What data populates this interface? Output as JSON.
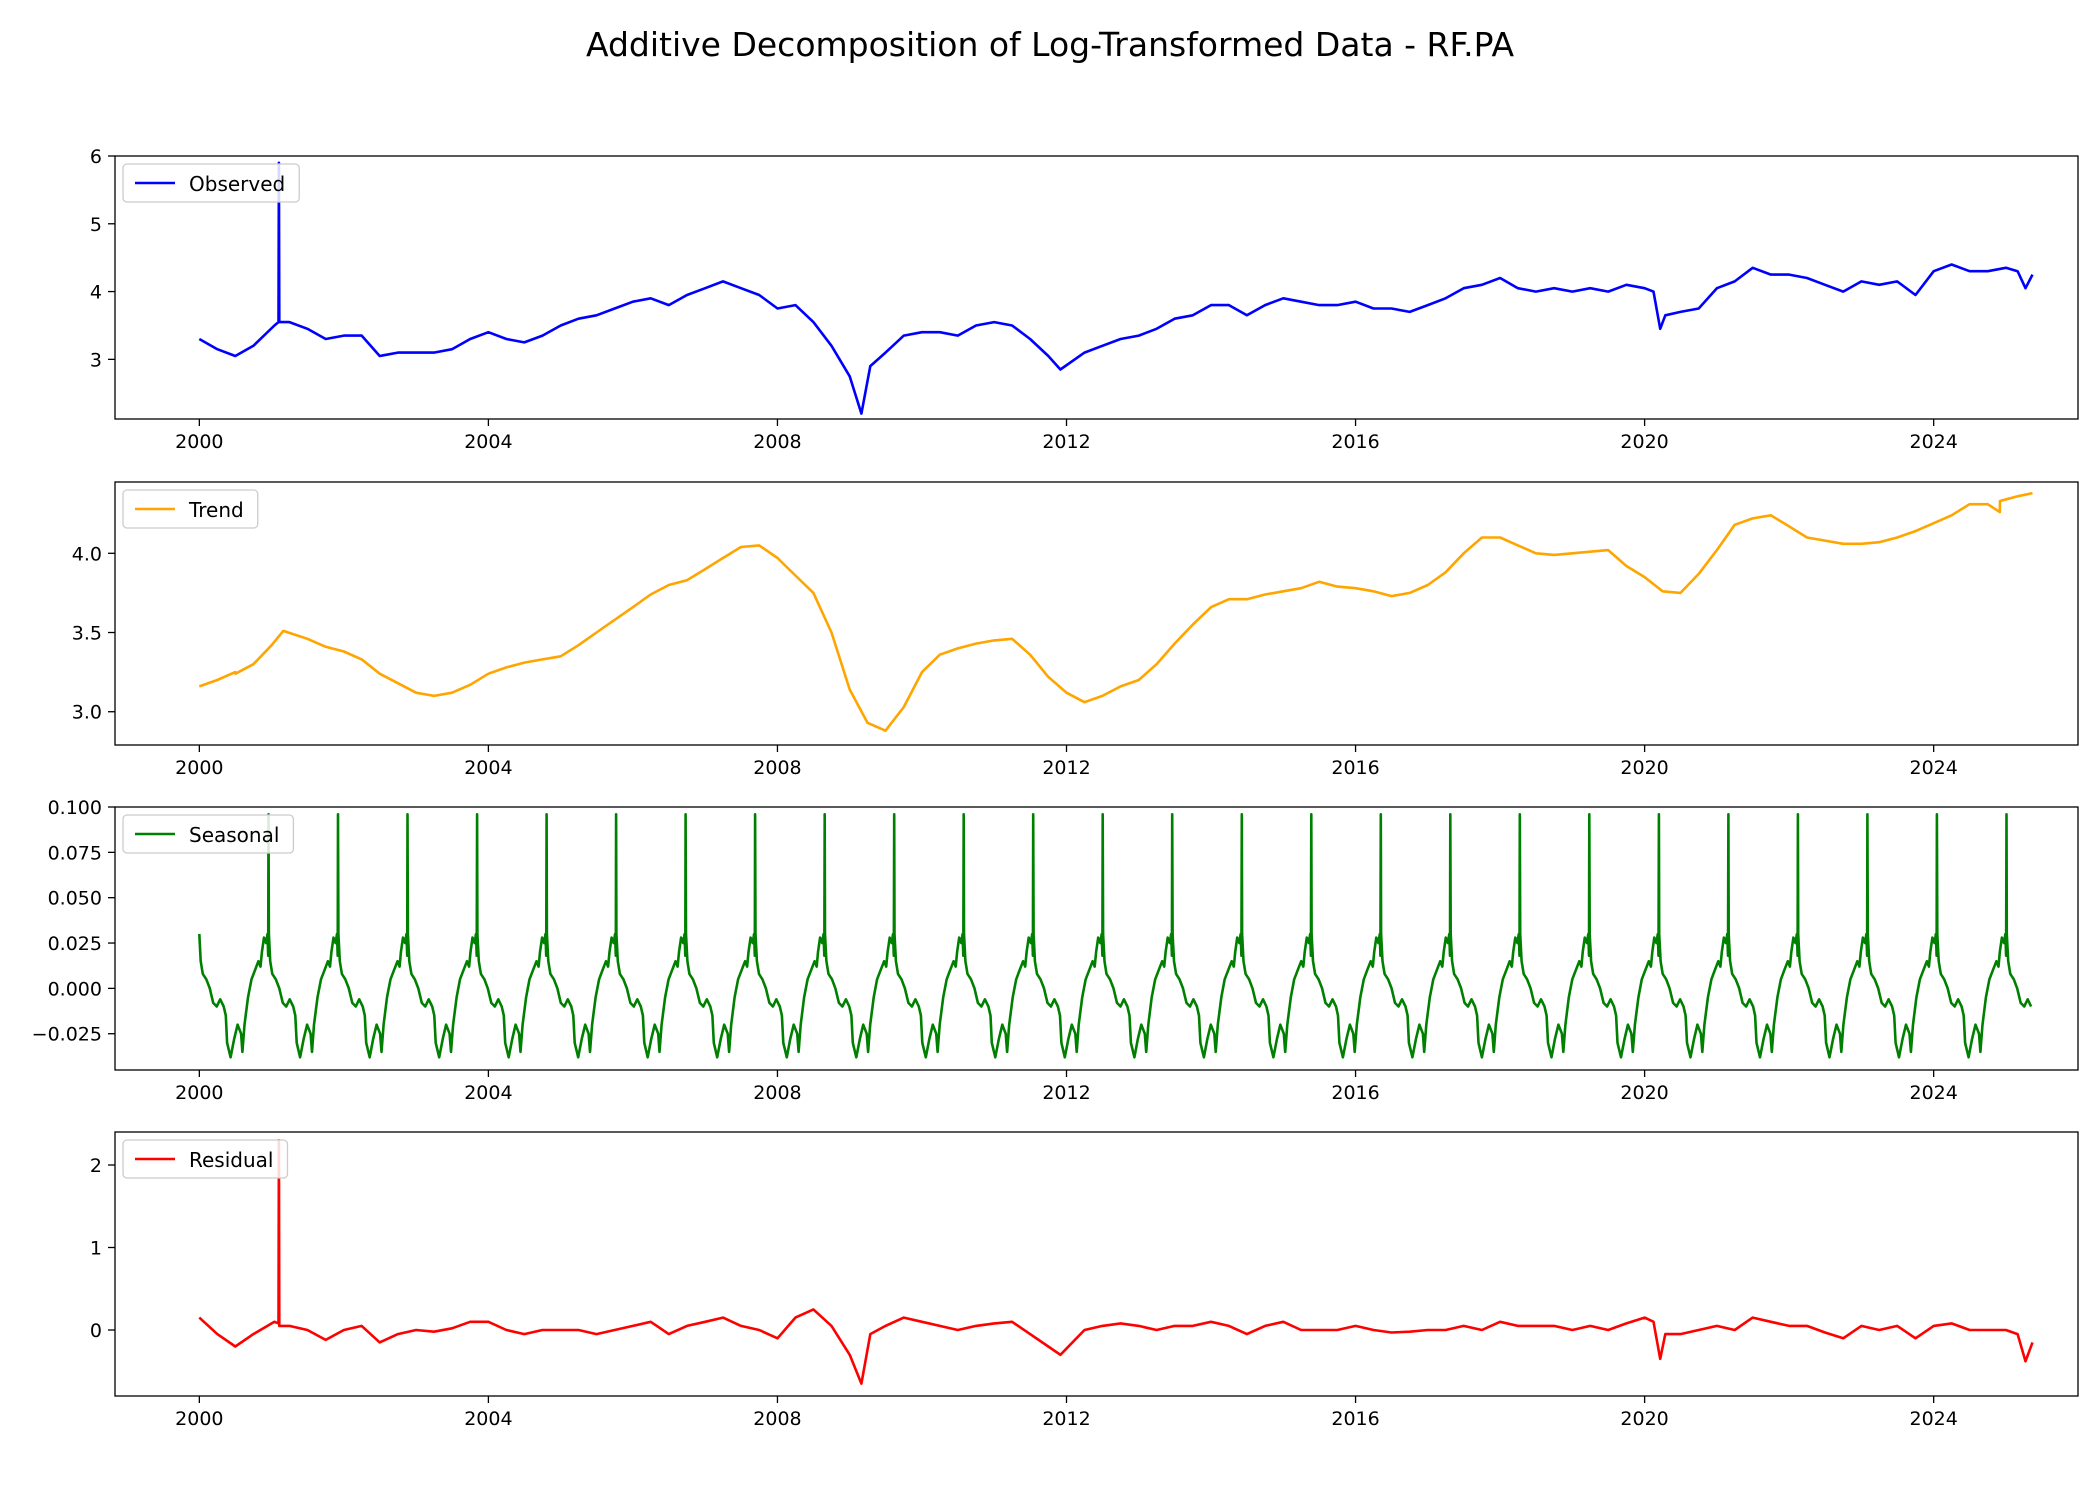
{
  "title": "Additive Decomposition of Log-Transformed Data - RF.PA",
  "chart_data": [
    {
      "type": "line",
      "legend": "Observed",
      "color": "#0000ff",
      "xlim": [
        "1998-11-01",
        "2025-12-31"
      ],
      "ylim": [
        2.12,
        6.0
      ],
      "yticks": [
        "3",
        "4",
        "5",
        "6"
      ],
      "ytick_values": [
        3,
        4,
        5,
        6
      ],
      "xticks": [
        "2000",
        "2004",
        "2008",
        "2012",
        "2016",
        "2020",
        "2024"
      ],
      "legend_position": "upper left",
      "x": [
        "2000-01-01",
        "2000-04-01",
        "2000-07-01",
        "2000-10-01",
        "2001-01-15",
        "2001-02-05",
        "2001-02-07",
        "2001-02-09",
        "2001-04-01",
        "2001-07-01",
        "2001-10-01",
        "2002-01-01",
        "2002-04-01",
        "2002-07-01",
        "2002-10-01",
        "2003-01-01",
        "2003-04-01",
        "2003-07-01",
        "2003-10-01",
        "2004-01-01",
        "2004-04-01",
        "2004-07-01",
        "2004-10-01",
        "2005-01-01",
        "2005-04-01",
        "2005-07-01",
        "2005-10-01",
        "2006-01-01",
        "2006-04-01",
        "2006-07-01",
        "2006-10-01",
        "2007-01-01",
        "2007-04-01",
        "2007-07-01",
        "2007-10-01",
        "2008-01-01",
        "2008-04-01",
        "2008-07-01",
        "2008-10-01",
        "2009-01-01",
        "2009-03-01",
        "2009-04-15",
        "2009-07-01",
        "2009-10-01",
        "2010-01-01",
        "2010-04-01",
        "2010-07-01",
        "2010-10-01",
        "2011-01-01",
        "2011-04-01",
        "2011-07-01",
        "2011-10-01",
        "2011-12-01",
        "2012-04-01",
        "2012-07-01",
        "2012-10-01",
        "2013-01-01",
        "2013-04-01",
        "2013-07-01",
        "2013-10-01",
        "2014-01-01",
        "2014-04-01",
        "2014-07-01",
        "2014-10-01",
        "2015-01-01",
        "2015-04-01",
        "2015-07-01",
        "2015-10-01",
        "2016-01-01",
        "2016-04-01",
        "2016-07-01",
        "2016-10-01",
        "2017-01-01",
        "2017-04-01",
        "2017-07-01",
        "2017-10-01",
        "2018-01-01",
        "2018-04-01",
        "2018-07-01",
        "2018-10-01",
        "2019-01-01",
        "2019-04-01",
        "2019-07-01",
        "2019-10-01",
        "2020-01-01",
        "2020-02-15",
        "2020-03-20",
        "2020-04-15",
        "2020-07-01",
        "2020-10-01",
        "2021-01-01",
        "2021-04-01",
        "2021-07-01",
        "2021-10-01",
        "2022-01-01",
        "2022-04-01",
        "2022-07-01",
        "2022-10-01",
        "2023-01-01",
        "2023-04-01",
        "2023-07-01",
        "2023-10-01",
        "2024-01-01",
        "2024-04-01",
        "2024-07-01",
        "2024-10-01",
        "2025-01-01",
        "2025-03-01",
        "2025-04-10",
        "2025-05-15"
      ],
      "y": [
        3.3,
        3.15,
        3.05,
        3.2,
        3.5,
        3.55,
        5.9,
        3.55,
        3.55,
        3.45,
        3.3,
        3.35,
        3.35,
        3.05,
        3.1,
        3.1,
        3.1,
        3.15,
        3.3,
        3.4,
        3.3,
        3.25,
        3.35,
        3.5,
        3.6,
        3.65,
        3.75,
        3.85,
        3.9,
        3.8,
        3.95,
        4.05,
        4.15,
        4.05,
        3.95,
        3.75,
        3.8,
        3.55,
        3.2,
        2.75,
        2.2,
        2.9,
        3.1,
        3.35,
        3.4,
        3.4,
        3.35,
        3.5,
        3.55,
        3.5,
        3.3,
        3.05,
        2.85,
        3.1,
        3.2,
        3.3,
        3.35,
        3.45,
        3.6,
        3.65,
        3.8,
        3.8,
        3.65,
        3.8,
        3.9,
        3.85,
        3.8,
        3.8,
        3.85,
        3.75,
        3.75,
        3.7,
        3.8,
        3.9,
        4.05,
        4.1,
        4.2,
        4.05,
        4.0,
        4.05,
        4.0,
        4.05,
        4.0,
        4.1,
        4.05,
        4.0,
        3.45,
        3.65,
        3.7,
        3.75,
        4.05,
        4.15,
        4.35,
        4.25,
        4.25,
        4.2,
        4.1,
        4.0,
        4.15,
        4.1,
        4.15,
        3.95,
        4.3,
        4.4,
        4.3,
        4.3,
        4.35,
        4.3,
        4.05,
        4.25
      ]
    },
    {
      "type": "line",
      "legend": "Trend",
      "color": "#ffa500",
      "xlim": [
        "1998-11-01",
        "2025-12-31"
      ],
      "ylim": [
        2.79,
        4.45
      ],
      "yticks": [
        "3.0",
        "3.5",
        "4.0"
      ],
      "ytick_values": [
        3.0,
        3.5,
        4.0
      ],
      "xticks": [
        "2000",
        "2004",
        "2008",
        "2012",
        "2016",
        "2020",
        "2024"
      ],
      "legend_position": "upper left",
      "x": [
        "2000-01-01",
        "2000-04-01",
        "2000-07-01",
        "2000-07-02",
        "2000-10-01",
        "2001-01-01",
        "2001-03-01",
        "2001-07-01",
        "2001-10-01",
        "2002-01-01",
        "2002-04-01",
        "2002-07-01",
        "2002-10-01",
        "2003-01-01",
        "2003-04-01",
        "2003-07-01",
        "2003-10-01",
        "2004-01-01",
        "2004-04-01",
        "2004-07-01",
        "2004-10-01",
        "2005-01-01",
        "2005-04-01",
        "2005-07-01",
        "2005-10-01",
        "2006-01-01",
        "2006-04-01",
        "2006-07-01",
        "2006-10-01",
        "2007-01-01",
        "2007-04-01",
        "2007-07-01",
        "2007-10-01",
        "2008-01-01",
        "2008-04-01",
        "2008-07-01",
        "2008-10-01",
        "2009-01-01",
        "2009-04-01",
        "2009-07-01",
        "2009-10-01",
        "2010-01-01",
        "2010-04-01",
        "2010-07-01",
        "2010-10-01",
        "2011-01-01",
        "2011-04-01",
        "2011-07-01",
        "2011-10-01",
        "2012-01-01",
        "2012-04-01",
        "2012-07-01",
        "2012-10-01",
        "2013-01-01",
        "2013-04-01",
        "2013-07-01",
        "2013-10-01",
        "2014-01-01",
        "2014-04-01",
        "2014-07-01",
        "2014-10-01",
        "2015-01-01",
        "2015-04-01",
        "2015-07-01",
        "2015-10-01",
        "2016-01-01",
        "2016-04-01",
        "2016-07-01",
        "2016-10-01",
        "2017-01-01",
        "2017-04-01",
        "2017-07-01",
        "2017-10-01",
        "2018-01-01",
        "2018-04-01",
        "2018-07-01",
        "2018-10-01",
        "2019-01-01",
        "2019-04-01",
        "2019-07-01",
        "2019-10-01",
        "2020-01-01",
        "2020-04-01",
        "2020-07-01",
        "2020-10-01",
        "2021-01-01",
        "2021-04-01",
        "2021-07-01",
        "2021-10-01",
        "2022-01-01",
        "2022-04-01",
        "2022-07-01",
        "2022-10-01",
        "2023-01-01",
        "2023-04-01",
        "2023-07-01",
        "2023-10-01",
        "2024-01-01",
        "2024-04-01",
        "2024-07-01",
        "2024-10-01",
        "2024-12-01",
        "2024-12-02",
        "2025-03-01",
        "2025-05-15"
      ],
      "y": [
        3.16,
        3.2,
        3.25,
        3.24,
        3.3,
        3.42,
        3.51,
        3.46,
        3.41,
        3.38,
        3.33,
        3.24,
        3.18,
        3.12,
        3.1,
        3.12,
        3.17,
        3.24,
        3.28,
        3.31,
        3.33,
        3.35,
        3.42,
        3.5,
        3.58,
        3.66,
        3.74,
        3.8,
        3.83,
        3.9,
        3.97,
        4.04,
        4.05,
        3.97,
        3.86,
        3.75,
        3.5,
        3.14,
        2.93,
        2.88,
        3.03,
        3.25,
        3.36,
        3.4,
        3.43,
        3.45,
        3.46,
        3.36,
        3.22,
        3.12,
        3.06,
        3.1,
        3.16,
        3.2,
        3.3,
        3.43,
        3.55,
        3.66,
        3.71,
        3.71,
        3.74,
        3.76,
        3.78,
        3.82,
        3.79,
        3.78,
        3.76,
        3.73,
        3.75,
        3.8,
        3.88,
        4.0,
        4.1,
        4.1,
        4.05,
        4.0,
        3.99,
        4.0,
        4.01,
        4.02,
        3.92,
        3.85,
        3.76,
        3.75,
        3.87,
        4.02,
        4.18,
        4.22,
        4.24,
        4.17,
        4.1,
        4.08,
        4.06,
        4.06,
        4.07,
        4.1,
        4.14,
        4.19,
        4.24,
        4.31,
        4.31,
        4.26,
        4.33,
        4.36,
        4.38
      ]
    },
    {
      "type": "line",
      "legend": "Seasonal",
      "color": "#008000",
      "xlim": [
        "1998-11-01",
        "2025-12-31"
      ],
      "ylim": [
        -0.045,
        0.1
      ],
      "yticks": [
        "−0.025",
        "0.000",
        "0.025",
        "0.050",
        "0.075",
        "0.100"
      ],
      "ytick_values": [
        -0.025,
        0.0,
        0.025,
        0.05,
        0.075,
        0.1
      ],
      "xticks": [
        "2000",
        "2004",
        "2008",
        "2012",
        "2016",
        "2020",
        "2024"
      ],
      "legend_position": "upper left",
      "period_years": 0.962,
      "one_period": {
        "phase": [
          0.0,
          0.02,
          0.05,
          0.1,
          0.15,
          0.2,
          0.25,
          0.3,
          0.35,
          0.38,
          0.4,
          0.45,
          0.5,
          0.55,
          0.6,
          0.62,
          0.65,
          0.7,
          0.75,
          0.8,
          0.85,
          0.88,
          0.9,
          0.93,
          0.96,
          0.98,
          0.99,
          0.995,
          1.0
        ],
        "value": [
          0.03,
          0.015,
          0.008,
          0.005,
          0.0,
          -0.008,
          -0.01,
          -0.006,
          -0.01,
          -0.015,
          -0.03,
          -0.038,
          -0.028,
          -0.02,
          -0.025,
          -0.035,
          -0.02,
          -0.005,
          0.005,
          0.01,
          0.015,
          0.012,
          0.02,
          0.028,
          0.025,
          0.03,
          0.018,
          0.096,
          0.03
        ]
      }
    },
    {
      "type": "line",
      "legend": "Residual",
      "color": "#ff0000",
      "xlim": [
        "1998-11-01",
        "2025-12-31"
      ],
      "ylim": [
        -0.8,
        2.4
      ],
      "yticks": [
        "0",
        "1",
        "2"
      ],
      "ytick_values": [
        0,
        1,
        2
      ],
      "xticks": [
        "2000",
        "2004",
        "2008",
        "2012",
        "2016",
        "2020",
        "2024"
      ],
      "legend_position": "upper left",
      "x": [
        "2000-01-01",
        "2000-04-01",
        "2000-07-01",
        "2000-10-01",
        "2001-01-15",
        "2001-02-05",
        "2001-02-07",
        "2001-02-09",
        "2001-04-01",
        "2001-07-01",
        "2001-10-01",
        "2002-01-01",
        "2002-04-01",
        "2002-07-01",
        "2002-10-01",
        "2003-01-01",
        "2003-04-01",
        "2003-07-01",
        "2003-10-01",
        "2004-01-01",
        "2004-04-01",
        "2004-07-01",
        "2004-10-01",
        "2005-01-01",
        "2005-04-01",
        "2005-07-01",
        "2005-10-01",
        "2006-01-01",
        "2006-04-01",
        "2006-07-01",
        "2006-10-01",
        "2007-01-01",
        "2007-04-01",
        "2007-07-01",
        "2007-10-01",
        "2008-01-01",
        "2008-04-01",
        "2008-07-01",
        "2008-10-01",
        "2009-01-01",
        "2009-03-01",
        "2009-04-15",
        "2009-07-01",
        "2009-10-01",
        "2010-01-01",
        "2010-04-01",
        "2010-07-01",
        "2010-10-01",
        "2011-01-01",
        "2011-04-01",
        "2011-07-01",
        "2011-10-01",
        "2011-12-01",
        "2012-04-01",
        "2012-07-01",
        "2012-10-01",
        "2013-01-01",
        "2013-04-01",
        "2013-07-01",
        "2013-10-01",
        "2014-01-01",
        "2014-04-01",
        "2014-07-01",
        "2014-10-01",
        "2015-01-01",
        "2015-04-01",
        "2015-07-01",
        "2015-10-01",
        "2016-01-01",
        "2016-04-01",
        "2016-07-01",
        "2016-10-01",
        "2017-01-01",
        "2017-04-01",
        "2017-07-01",
        "2017-10-01",
        "2018-01-01",
        "2018-04-01",
        "2018-07-01",
        "2018-10-01",
        "2019-01-01",
        "2019-04-01",
        "2019-07-01",
        "2019-10-01",
        "2020-01-01",
        "2020-02-15",
        "2020-03-20",
        "2020-04-15",
        "2020-07-01",
        "2020-10-01",
        "2021-01-01",
        "2021-04-01",
        "2021-07-01",
        "2021-10-01",
        "2022-01-01",
        "2022-04-01",
        "2022-07-01",
        "2022-10-01",
        "2023-01-01",
        "2023-04-01",
        "2023-07-01",
        "2023-10-01",
        "2024-01-01",
        "2024-04-01",
        "2024-07-01",
        "2024-10-01",
        "2025-01-01",
        "2025-03-01",
        "2025-04-10",
        "2025-05-15"
      ],
      "y": [
        0.15,
        -0.05,
        -0.2,
        -0.05,
        0.1,
        0.08,
        2.3,
        0.05,
        0.05,
        0.0,
        -0.12,
        0.0,
        0.05,
        -0.15,
        -0.05,
        0.0,
        -0.02,
        0.02,
        0.1,
        0.1,
        0.0,
        -0.05,
        0.0,
        0.0,
        0.0,
        -0.05,
        0.0,
        0.05,
        0.1,
        -0.05,
        0.05,
        0.1,
        0.15,
        0.05,
        0.0,
        -0.1,
        0.15,
        0.25,
        0.05,
        -0.3,
        -0.65,
        -0.05,
        0.05,
        0.15,
        0.1,
        0.05,
        0.0,
        0.05,
        0.08,
        0.1,
        -0.05,
        -0.2,
        -0.3,
        0.0,
        0.05,
        0.08,
        0.05,
        0.0,
        0.05,
        0.05,
        0.1,
        0.05,
        -0.05,
        0.05,
        0.1,
        0.0,
        0.0,
        0.0,
        0.05,
        0.0,
        -0.03,
        -0.02,
        0.0,
        0.0,
        0.05,
        0.0,
        0.1,
        0.05,
        0.05,
        0.05,
        0.0,
        0.05,
        0.0,
        0.08,
        0.15,
        0.1,
        -0.35,
        -0.05,
        -0.05,
        0.0,
        0.05,
        0.0,
        0.15,
        0.1,
        0.05,
        0.05,
        -0.03,
        -0.1,
        0.05,
        0.0,
        0.05,
        -0.1,
        0.05,
        0.08,
        0.0,
        0.0,
        0.0,
        -0.05,
        -0.38,
        -0.15
      ]
    }
  ]
}
